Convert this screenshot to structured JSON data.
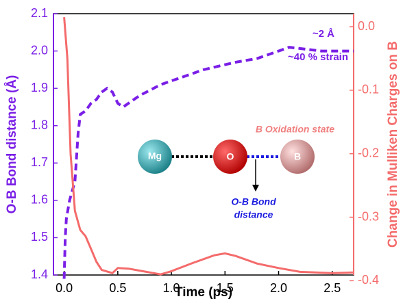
{
  "chart_data": {
    "type": "line",
    "xlabel": "Time (ps)",
    "ylabel": "O-B Bond distance (Å)",
    "y2label": "Change in Mulliken Charges on B",
    "xlim": [
      -0.1,
      2.7
    ],
    "xticks": [
      {
        "value": 0,
        "label": "0.0"
      },
      0.5,
      {
        "value": 1,
        "label": "1.0"
      },
      1.5,
      {
        "value": 2,
        "label": "2.0"
      },
      2.5
    ],
    "ylim": [
      1.4,
      2.1
    ],
    "yticks": [
      1.4,
      1.5,
      1.6,
      1.7,
      1.8,
      1.9,
      {
        "value": 2,
        "label": "2.0"
      },
      2.1
    ],
    "y2lim": [
      -0.391,
      0.0205
    ],
    "y2ticks": [
      {
        "value": 0,
        "label": "0.0"
      },
      -0.1,
      -0.2,
      -0.3,
      -0.4
    ],
    "series": [
      {
        "color": "#7a1fe6",
        "dash": true,
        "x": [
          0.0,
          0.01,
          0.02,
          0.05,
          0.1,
          0.13,
          0.15,
          0.2,
          0.25,
          0.3,
          0.35,
          0.4,
          0.45,
          0.5,
          0.55,
          0.7,
          0.9,
          1.1,
          1.3,
          1.6,
          1.8,
          2.0,
          2.1,
          2.4,
          2.7
        ],
        "values": [
          1.39,
          1.5,
          1.55,
          1.6,
          1.65,
          1.78,
          1.83,
          1.84,
          1.86,
          1.87,
          1.89,
          1.9,
          1.89,
          1.86,
          1.85,
          1.88,
          1.91,
          1.93,
          1.95,
          1.97,
          1.98,
          2.0,
          2.01,
          2.0,
          2.0
        ]
      },
      {
        "color": "#f46b6b",
        "axis": "y2",
        "x": [
          0.0,
          0.03,
          0.06,
          0.1,
          0.15,
          0.2,
          0.25,
          0.3,
          0.35,
          0.45,
          0.5,
          0.6,
          0.7,
          0.9,
          1.0,
          1.2,
          1.4,
          1.5,
          1.6,
          1.8,
          2.0,
          2.2,
          2.5,
          2.7
        ],
        "values": [
          0.015,
          -0.05,
          -0.2,
          -0.29,
          -0.32,
          -0.33,
          -0.35,
          -0.37,
          -0.383,
          -0.388,
          -0.38,
          -0.381,
          -0.384,
          -0.39,
          -0.385,
          -0.372,
          -0.36,
          -0.357,
          -0.361,
          -0.373,
          -0.38,
          -0.386,
          -0.388,
          -0.387
        ]
      }
    ],
    "annotations": [
      "~2 Å",
      "~40 % strain",
      "B Oxidation state",
      "O-B Bond",
      "distance",
      "Mg",
      "O",
      "B"
    ]
  }
}
